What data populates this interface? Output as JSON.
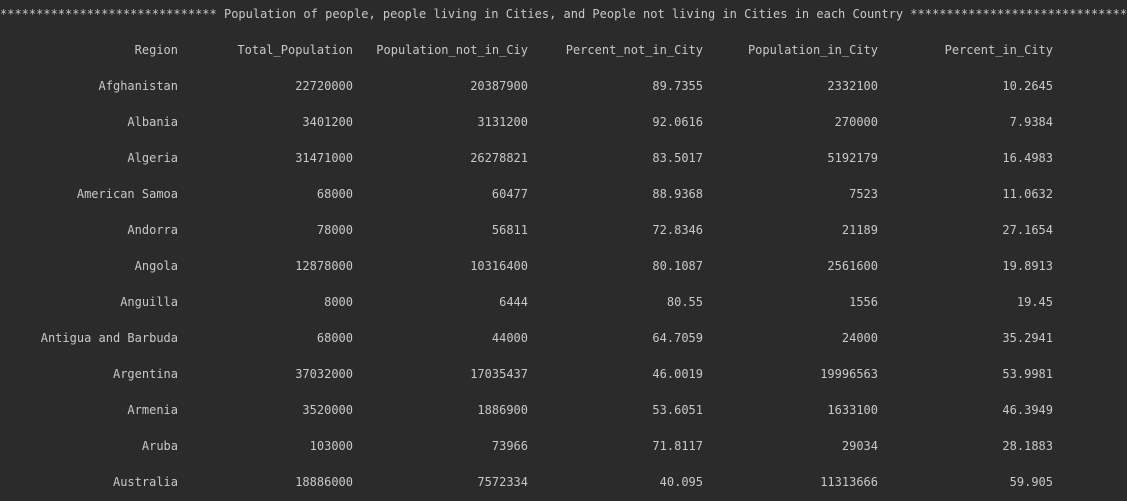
{
  "banner": "****************************** Population of people, people living in Cities, and People not living in Cities in each Country ******************************",
  "table": {
    "columns": [
      "Region",
      "Total_Population",
      "Population_not_in_Ciy",
      "Percent_not_in_City",
      "Population_in_City",
      "Percent_in_City"
    ],
    "rows": [
      [
        "Afghanistan",
        "22720000",
        "20387900",
        "89.7355",
        "2332100",
        "10.2645"
      ],
      [
        "Albania",
        "3401200",
        "3131200",
        "92.0616",
        "270000",
        "7.9384"
      ],
      [
        "Algeria",
        "31471000",
        "26278821",
        "83.5017",
        "5192179",
        "16.4983"
      ],
      [
        "American Samoa",
        "68000",
        "60477",
        "88.9368",
        "7523",
        "11.0632"
      ],
      [
        "Andorra",
        "78000",
        "56811",
        "72.8346",
        "21189",
        "27.1654"
      ],
      [
        "Angola",
        "12878000",
        "10316400",
        "80.1087",
        "2561600",
        "19.8913"
      ],
      [
        "Anguilla",
        "8000",
        "6444",
        "80.55",
        "1556",
        "19.45"
      ],
      [
        "Antigua and Barbuda",
        "68000",
        "44000",
        "64.7059",
        "24000",
        "35.2941"
      ],
      [
        "Argentina",
        "37032000",
        "17035437",
        "46.0019",
        "19996563",
        "53.9981"
      ],
      [
        "Armenia",
        "3520000",
        "1886900",
        "53.6051",
        "1633100",
        "46.3949"
      ],
      [
        "Aruba",
        "103000",
        "73966",
        "71.8117",
        "29034",
        "28.1883"
      ],
      [
        "Australia",
        "18886000",
        "7572334",
        "40.095",
        "11313666",
        "59.905"
      ]
    ]
  }
}
